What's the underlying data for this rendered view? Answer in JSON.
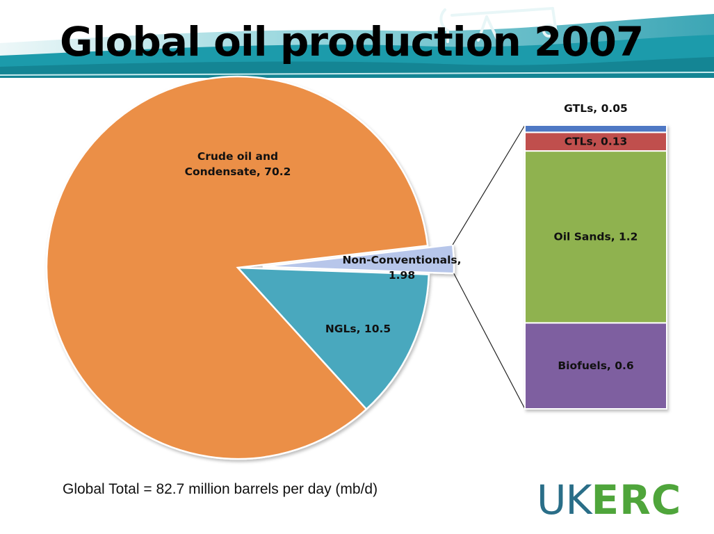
{
  "slide": {
    "title": "Global oil production 2007",
    "footer_total": "Global Total = 82.7 million barrels per day (mb/d)",
    "logo": {
      "part1": "UK",
      "part2": "ERC"
    }
  },
  "colors": {
    "crude": "#eb8f46",
    "ngls": "#49a8be",
    "nonconv": "#b7c6ea",
    "gtls": "#4f78c4",
    "ctls": "#c0504d",
    "oil_sands": "#8fb24f",
    "biofuels": "#7e5fa0",
    "banner_teal": "#1c9bab",
    "logo_blue": "#2a6e88",
    "logo_green": "#4fa53b"
  },
  "chart_data": [
    {
      "type": "pie",
      "categories": [
        "Crude oil and Condensate",
        "NGLs",
        "Non-Conventionals"
      ],
      "values": [
        70.2,
        10.5,
        1.98
      ],
      "labels": [
        "Crude oil and|Condensate, 70.2",
        "NGLs, 10.5",
        "Non-Conventionals,|1.98"
      ],
      "exploded": "Non-Conventionals"
    },
    {
      "type": "bar",
      "stacked": true,
      "categories": [
        "Biofuels",
        "Oil Sands",
        "CTLs",
        "GTLs"
      ],
      "values": [
        0.6,
        1.2,
        0.13,
        0.05
      ],
      "labels": [
        "Biofuels, 0.6",
        "Oil Sands, 1.2",
        "CTLs, 0.13",
        "GTLs, 0.05"
      ]
    }
  ]
}
